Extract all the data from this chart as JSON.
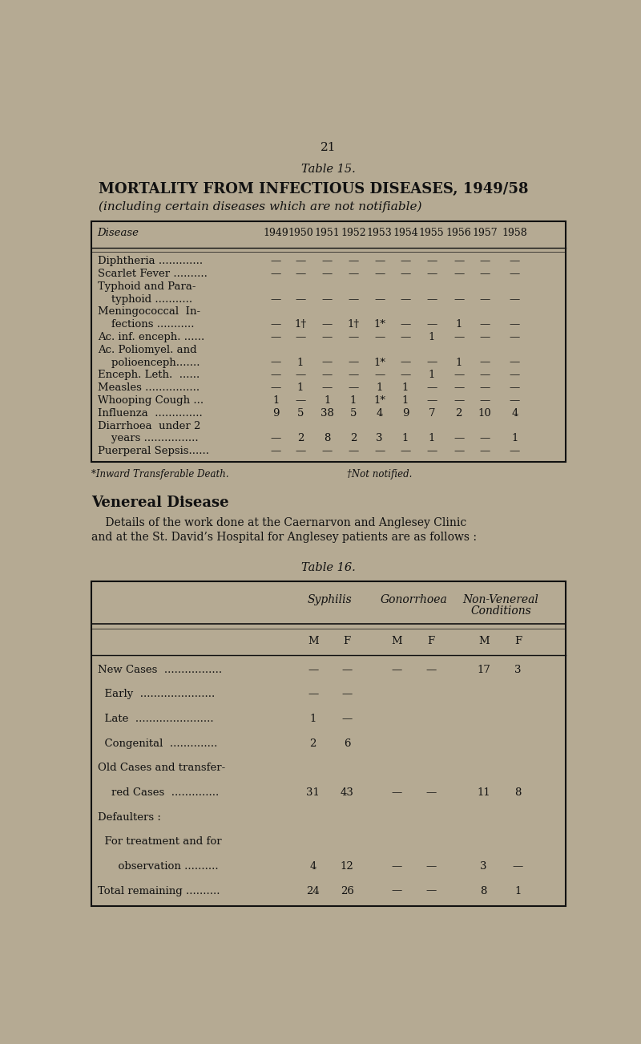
{
  "bg_color": "#b5aa93",
  "page_number": "21",
  "table15_title": "Table 15.",
  "table15_heading1": "MORTALITY FROM INFECTIOUS DISEASES, 1949/58",
  "table15_heading2": "(including certain diseases which are not notifiable)",
  "table15_col_header": "Disease",
  "table15_years": [
    "1949",
    "1950",
    "1951",
    "1952",
    "1953",
    "1954",
    "1955",
    "1956",
    "1957",
    "1958"
  ],
  "table15_rows": [
    {
      "disease": "Diphtheria .............",
      "cont": false,
      "vals": [
        "—",
        "—",
        "—",
        "—",
        "—",
        "—",
        "—",
        "—",
        "—",
        "—"
      ]
    },
    {
      "disease": "Scarlet Fever ..........",
      "cont": false,
      "vals": [
        "—",
        "—",
        "—",
        "—",
        "—",
        "—",
        "—",
        "—",
        "—",
        "—"
      ]
    },
    {
      "disease": "Typhoid and Para-",
      "cont": false,
      "vals": [
        "",
        "",
        "",
        "",
        "",
        "",
        "",
        "",
        "",
        ""
      ]
    },
    {
      "disease": "    typhoid ...........",
      "cont": true,
      "vals": [
        "—",
        "—",
        "—",
        "—",
        "—",
        "—",
        "—",
        "—",
        "—",
        "—"
      ]
    },
    {
      "disease": "Meningococcal  In-",
      "cont": false,
      "vals": [
        "",
        "",
        "",
        "",
        "",
        "",
        "",
        "",
        "",
        ""
      ]
    },
    {
      "disease": "    fections ...........",
      "cont": true,
      "vals": [
        "—",
        "1†",
        "—",
        "1†",
        "1*",
        "—",
        "—",
        "1",
        "—",
        "—"
      ]
    },
    {
      "disease": "Ac. inf. enceph. ......",
      "cont": false,
      "vals": [
        "—",
        "—",
        "—",
        "—",
        "—",
        "—",
        "1",
        "—",
        "—",
        "—"
      ]
    },
    {
      "disease": "Ac. Poliomyel. and",
      "cont": false,
      "vals": [
        "",
        "",
        "",
        "",
        "",
        "",
        "",
        "",
        "",
        ""
      ]
    },
    {
      "disease": "    polioenceph.......",
      "cont": true,
      "vals": [
        "—",
        "1",
        "—",
        "—",
        "1*",
        "—",
        "—",
        "1",
        "—",
        "—"
      ]
    },
    {
      "disease": "Enceph. Leth.  ......",
      "cont": false,
      "vals": [
        "—",
        "—",
        "—",
        "—",
        "—",
        "—",
        "1",
        "—",
        "—",
        "—"
      ]
    },
    {
      "disease": "Measles ................",
      "cont": false,
      "vals": [
        "—",
        "1",
        "—",
        "—",
        "1",
        "1",
        "—",
        "—",
        "—",
        "—"
      ]
    },
    {
      "disease": "Whooping Cough ...",
      "cont": false,
      "vals": [
        "1",
        "—",
        "1",
        "1",
        "1*",
        "1",
        "—",
        "—",
        "—",
        "—"
      ]
    },
    {
      "disease": "Influenza  ..............",
      "cont": false,
      "vals": [
        "9",
        "5",
        "38",
        "5",
        "4",
        "9",
        "7",
        "2",
        "10",
        "4"
      ]
    },
    {
      "disease": "Diarrhoea  under 2",
      "cont": false,
      "vals": [
        "",
        "",
        "",
        "",
        "",
        "",
        "",
        "",
        "",
        ""
      ]
    },
    {
      "disease": "    years ................",
      "cont": true,
      "vals": [
        "—",
        "2",
        "8",
        "2",
        "3",
        "1",
        "1",
        "—",
        "—",
        "1"
      ]
    },
    {
      "disease": "Puerperal Sepsis......",
      "cont": false,
      "vals": [
        "—",
        "—",
        "—",
        "—",
        "—",
        "—",
        "—",
        "—",
        "—",
        "—"
      ]
    }
  ],
  "table15_footnote1": "*Inward Transferable Death.",
  "table15_footnote2": "†Not notified.",
  "venereal_heading": "Venereal Disease",
  "venereal_line1": "    Details of the work done at the Caernarvon and Anglesey Clinic",
  "venereal_line2": "and at the St. David’s Hospital for Anglesey patients are as follows :",
  "table16_title": "Table 16.",
  "table16_grp1": "Syphilis",
  "table16_grp2": "Gonorrhoea",
  "table16_grp3a": "Non-Venereal",
  "table16_grp3b": "Conditions",
  "table16_sub": [
    "M",
    "F",
    "M",
    "F",
    "M",
    "F"
  ],
  "table16_rows": [
    {
      "label": "New Cases  .................",
      "vals": [
        "—",
        "—",
        "—",
        "—",
        "17",
        "3"
      ]
    },
    {
      "label": "  Early  ......................",
      "vals": [
        "—",
        "—",
        "",
        "",
        "",
        ""
      ]
    },
    {
      "label": "  Late  .......................",
      "vals": [
        "1",
        "—",
        "",
        "",
        "",
        ""
      ]
    },
    {
      "label": "  Congenital  ..............",
      "vals": [
        "2",
        "6",
        "",
        "",
        "",
        ""
      ]
    },
    {
      "label": "Old Cases and transfer-",
      "vals": [
        "",
        "",
        "",
        "",
        "",
        ""
      ]
    },
    {
      "label": "    red Cases  ..............",
      "vals": [
        "31",
        "43",
        "—",
        "—",
        "11",
        "8"
      ]
    },
    {
      "label": "Defaulters :",
      "vals": [
        "",
        "",
        "",
        "",
        "",
        ""
      ]
    },
    {
      "label": "  For treatment and for",
      "vals": [
        "",
        "",
        "",
        "",
        "",
        ""
      ]
    },
    {
      "label": "      observation ..........",
      "vals": [
        "4",
        "12",
        "—",
        "—",
        "3",
        "—"
      ]
    },
    {
      "label": "Total remaining ..........",
      "vals": [
        "24",
        "26",
        "—",
        "—",
        "8",
        "1"
      ]
    }
  ],
  "tc": "#111111",
  "fs": 9.5
}
